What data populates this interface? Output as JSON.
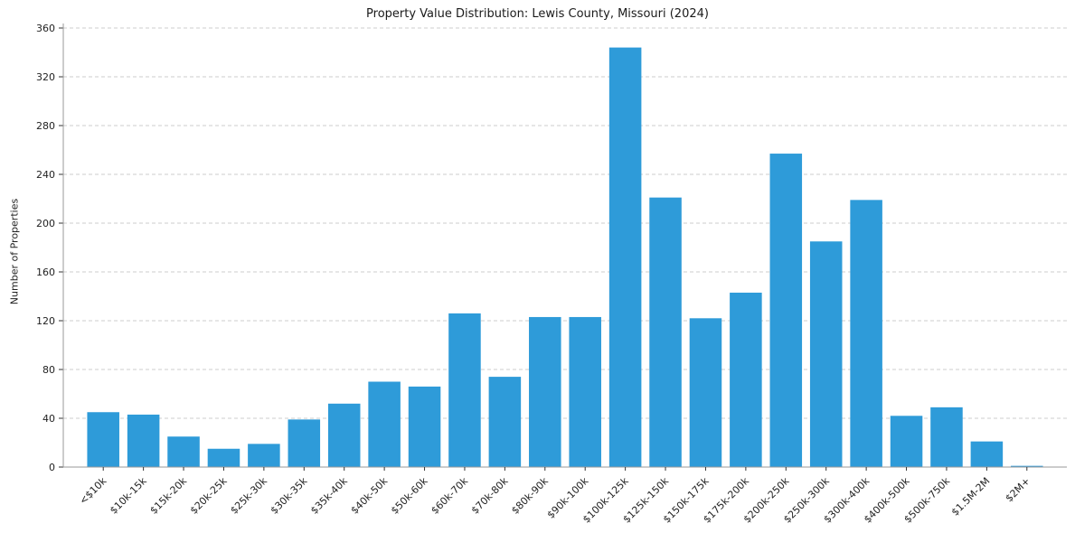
{
  "chart_data": {
    "type": "bar",
    "title": "Property Value Distribution: Lewis County, Missouri (2024)",
    "xlabel": "",
    "ylabel": "Number of Properties",
    "ylim": [
      0,
      360
    ],
    "yticks": [
      0,
      40,
      80,
      120,
      160,
      200,
      240,
      280,
      320,
      360
    ],
    "grid": "horizontal-dashed",
    "legend": "none",
    "bar_color": "#2e9bd9",
    "categories": [
      "<$10k",
      "$10k-15k",
      "$15k-20k",
      "$20k-25k",
      "$25k-30k",
      "$30k-35k",
      "$35k-40k",
      "$40k-50k",
      "$50k-60k",
      "$60k-70k",
      "$70k-80k",
      "$80k-90k",
      "$90k-100k",
      "$100k-125k",
      "$125k-150k",
      "$150k-175k",
      "$175k-200k",
      "$200k-250k",
      "$250k-300k",
      "$300k-400k",
      "$400k-500k",
      "$500k-750k",
      "$1.5M-2M",
      "$2M+"
    ],
    "values": [
      45,
      43,
      25,
      15,
      19,
      39,
      52,
      70,
      66,
      126,
      74,
      123,
      123,
      344,
      221,
      122,
      143,
      257,
      185,
      219,
      42,
      49,
      21,
      1
    ]
  }
}
